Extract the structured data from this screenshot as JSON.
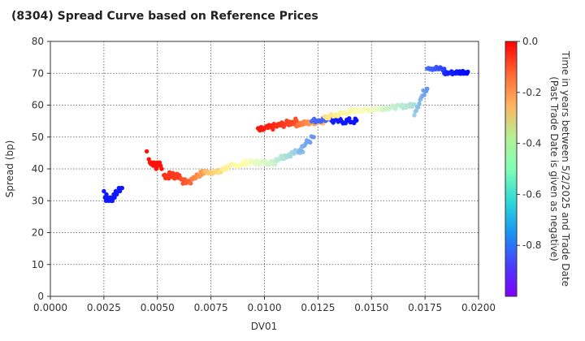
{
  "chart_data": {
    "type": "scatter",
    "title": "(8304)   Spread Curve based on Reference Prices",
    "xlabel": "DV01",
    "ylabel": "Spread (bp)",
    "xlim": [
      0.0,
      0.02
    ],
    "ylim": [
      0,
      80
    ],
    "xticks": [
      "0.0000",
      "0.0025",
      "0.0050",
      "0.0075",
      "0.0100",
      "0.0125",
      "0.0150",
      "0.0175",
      "0.0200"
    ],
    "yticks": [
      "0",
      "10",
      "20",
      "30",
      "40",
      "50",
      "60",
      "70",
      "80"
    ],
    "grid": true,
    "colorbar": {
      "label_line1": "Time in years between 5/2/2025 and Trade Date",
      "label_line2": "(Past Trade Date is given as negative)",
      "range": [
        -1.0,
        0.0
      ],
      "ticks": [
        "0.0",
        "-0.2",
        "-0.4",
        "-0.6",
        "-0.8"
      ],
      "colormap": "rainbow"
    },
    "series": [
      {
        "name": "purple cluster left",
        "x_range": [
          0.0025,
          0.0034
        ],
        "y_start": 33,
        "y_end": 34,
        "t": -0.97,
        "points": [
          [
            0.0025,
            33
          ],
          [
            0.00255,
            31
          ],
          [
            0.0026,
            30
          ],
          [
            0.00262,
            32
          ],
          [
            0.00268,
            31
          ],
          [
            0.00272,
            30
          ],
          [
            0.00278,
            31
          ],
          [
            0.00283,
            30
          ],
          [
            0.00288,
            31
          ],
          [
            0.0029,
            30
          ],
          [
            0.00296,
            32
          ],
          [
            0.003,
            31
          ],
          [
            0.00305,
            33
          ],
          [
            0.0031,
            32
          ],
          [
            0.00315,
            33
          ],
          [
            0.0032,
            34
          ],
          [
            0.00325,
            33
          ],
          [
            0.0033,
            34
          ],
          [
            0.00335,
            34
          ]
        ]
      },
      {
        "name": "red start",
        "x_range": [
          0.0045,
          0.0052
        ],
        "t": -0.02,
        "points": [
          [
            0.0045,
            45.5
          ],
          [
            0.0046,
            43
          ],
          [
            0.00465,
            42
          ],
          [
            0.0047,
            41.5
          ],
          [
            0.00475,
            42
          ],
          [
            0.0048,
            41
          ],
          [
            0.00485,
            42
          ],
          [
            0.0049,
            41
          ],
          [
            0.00495,
            40
          ],
          [
            0.005,
            42
          ],
          [
            0.00505,
            41
          ],
          [
            0.0051,
            42
          ],
          [
            0.00515,
            41
          ],
          [
            0.0052,
            40
          ]
        ]
      }
    ]
  }
}
